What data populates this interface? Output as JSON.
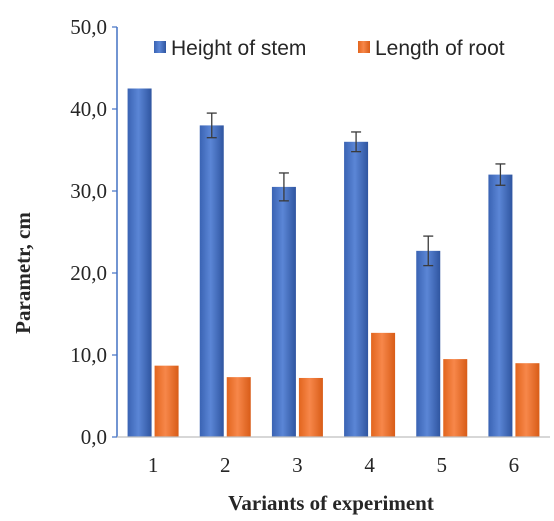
{
  "chart_data": {
    "type": "bar",
    "categories": [
      "1",
      "2",
      "3",
      "4",
      "5",
      "6"
    ],
    "series": [
      {
        "name": "Height of stem",
        "color": "#4472c4",
        "values": [
          42.5,
          38.0,
          30.5,
          36.0,
          22.7,
          32.0
        ],
        "error": [
          0,
          1.5,
          1.7,
          1.2,
          1.8,
          1.3
        ]
      },
      {
        "name": "Length of root",
        "color": "#ed7d31",
        "values": [
          8.7,
          7.3,
          7.2,
          12.7,
          9.5,
          9.0
        ],
        "error": [
          0,
          0,
          0,
          0,
          0,
          0
        ]
      }
    ],
    "xlabel": "Variants of experiment",
    "ylabel": "Parametr, cm",
    "ylim": [
      0,
      50
    ],
    "yticks": [
      0,
      10,
      20,
      30,
      40,
      50
    ],
    "ytick_labels": [
      "0,0",
      "10,0",
      "20,0",
      "30,0",
      "40,0",
      "50,0"
    ],
    "legend_position": "top",
    "grid": false
  }
}
